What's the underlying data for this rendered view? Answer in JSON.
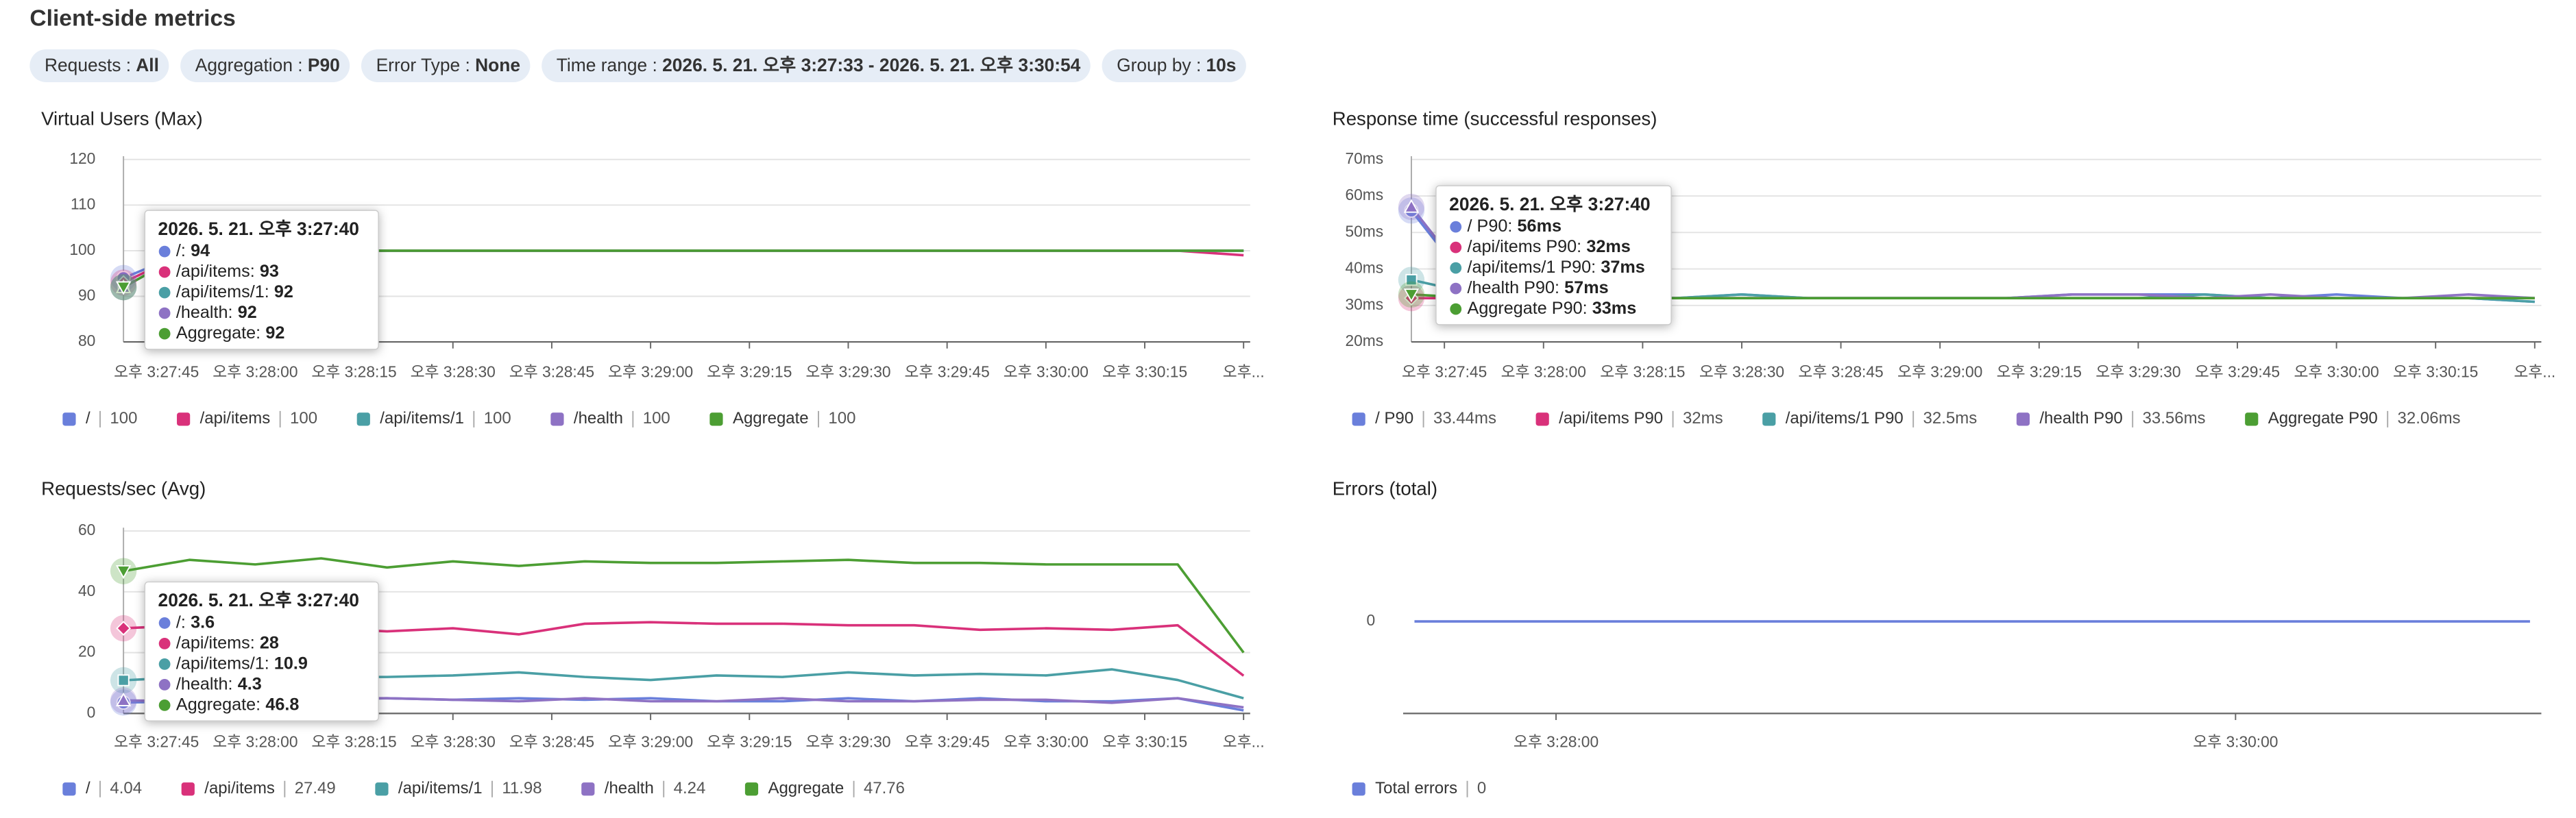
{
  "header": {
    "title": "Client-side metrics"
  },
  "filters": [
    {
      "label": "Requests :",
      "value": "All"
    },
    {
      "label": "Aggregation :",
      "value": "P90"
    },
    {
      "label": "Error Type :",
      "value": "None"
    },
    {
      "label": "Time range :",
      "value": "2026. 5. 21. 오후 3:27:33 - 2026. 5. 21. 오후 3:30:54"
    },
    {
      "label": "Group by :",
      "value": "10s"
    }
  ],
  "chart_data": [
    {
      "type": "line",
      "title": "Virtual Users (Max)",
      "grid": true,
      "hover_index": 0,
      "x": [
        "2026-05-21T15:27:40",
        "2026-05-21T15:27:50",
        "2026-05-21T15:28:00",
        "2026-05-21T15:28:10",
        "2026-05-21T15:28:20",
        "2026-05-21T15:28:30",
        "2026-05-21T15:28:40",
        "2026-05-21T15:28:50",
        "2026-05-21T15:29:00",
        "2026-05-21T15:29:10",
        "2026-05-21T15:29:20",
        "2026-05-21T15:29:30",
        "2026-05-21T15:29:40",
        "2026-05-21T15:29:50",
        "2026-05-21T15:30:00",
        "2026-05-21T15:30:10",
        "2026-05-21T15:30:20",
        "2026-05-21T15:30:30"
      ],
      "xlim": [
        "2026-05-21T15:27:40",
        "2026-05-21T15:30:31"
      ],
      "xticks": [
        {
          "value": "2026-05-21T15:27:45",
          "label": "오후 3:27:45"
        },
        {
          "value": "2026-05-21T15:28:00",
          "label": "오후 3:28:00"
        },
        {
          "value": "2026-05-21T15:28:15",
          "label": "오후 3:28:15"
        },
        {
          "value": "2026-05-21T15:28:30",
          "label": "오후 3:28:30"
        },
        {
          "value": "2026-05-21T15:28:45",
          "label": "오후 3:28:45"
        },
        {
          "value": "2026-05-21T15:29:00",
          "label": "오후 3:29:00"
        },
        {
          "value": "2026-05-21T15:29:15",
          "label": "오후 3:29:15"
        },
        {
          "value": "2026-05-21T15:29:30",
          "label": "오후 3:29:30"
        },
        {
          "value": "2026-05-21T15:29:45",
          "label": "오후 3:29:45"
        },
        {
          "value": "2026-05-21T15:30:00",
          "label": "오후 3:30:00"
        },
        {
          "value": "2026-05-21T15:30:15",
          "label": "오후 3:30:15"
        },
        {
          "value": "2026-05-21T15:30:30",
          "label": "오후..."
        }
      ],
      "ylim": [
        80,
        120
      ],
      "yticks": [
        80,
        90,
        100,
        110,
        120
      ],
      "series": [
        {
          "name": "/",
          "color": "#6a7fdb",
          "marker": "circle",
          "summary": "100",
          "values": [
            94,
            100,
            100,
            100,
            100,
            100,
            100,
            100,
            100,
            100,
            100,
            100,
            100,
            100,
            100,
            100,
            100,
            100
          ]
        },
        {
          "name": "/api/items",
          "color": "#d9317a",
          "marker": "diamond",
          "summary": "100",
          "values": [
            93,
            100,
            100,
            100,
            100,
            100,
            100,
            100,
            100,
            100,
            100,
            100,
            100,
            100,
            100,
            100,
            100,
            99
          ]
        },
        {
          "name": "/api/items/1",
          "color": "#4a9fa5",
          "marker": "square",
          "summary": "100",
          "values": [
            92,
            100,
            100,
            100,
            100,
            100,
            100,
            100,
            100,
            100,
            100,
            100,
            100,
            100,
            100,
            100,
            100,
            100
          ]
        },
        {
          "name": "/health",
          "color": "#8e72c4",
          "marker": "triangle-up",
          "summary": "100",
          "values": [
            92,
            100,
            100,
            100,
            100,
            100,
            100,
            100,
            100,
            100,
            100,
            100,
            100,
            100,
            100,
            100,
            100,
            100
          ]
        },
        {
          "name": "Aggregate",
          "color": "#4c9e33",
          "marker": "triangle-down",
          "summary": "100",
          "values": [
            92,
            100,
            100,
            100,
            100,
            100,
            100,
            100,
            100,
            100,
            100,
            100,
            100,
            100,
            100,
            100,
            100,
            100
          ]
        }
      ],
      "tooltip": {
        "title": "2026. 5. 21. 오후 3:27:40",
        "items": [
          {
            "label": "/:",
            "value": "94"
          },
          {
            "label": "/api/items:",
            "value": "93"
          },
          {
            "label": "/api/items/1:",
            "value": "92"
          },
          {
            "label": "/health:",
            "value": "92"
          },
          {
            "label": "Aggregate:",
            "value": "92"
          }
        ]
      }
    },
    {
      "type": "line",
      "title": "Response time (successful responses)",
      "grid": true,
      "hover_index": 0,
      "x": [
        "2026-05-21T15:27:40",
        "2026-05-21T15:27:50",
        "2026-05-21T15:28:00",
        "2026-05-21T15:28:10",
        "2026-05-21T15:28:20",
        "2026-05-21T15:28:30",
        "2026-05-21T15:28:40",
        "2026-05-21T15:28:50",
        "2026-05-21T15:29:00",
        "2026-05-21T15:29:10",
        "2026-05-21T15:29:20",
        "2026-05-21T15:29:30",
        "2026-05-21T15:29:40",
        "2026-05-21T15:29:50",
        "2026-05-21T15:30:00",
        "2026-05-21T15:30:10",
        "2026-05-21T15:30:20",
        "2026-05-21T15:30:30"
      ],
      "xlim": [
        "2026-05-21T15:27:40",
        "2026-05-21T15:30:31"
      ],
      "xticks": [
        {
          "value": "2026-05-21T15:27:45",
          "label": "오후 3:27:45"
        },
        {
          "value": "2026-05-21T15:28:00",
          "label": "오후 3:28:00"
        },
        {
          "value": "2026-05-21T15:28:15",
          "label": "오후 3:28:15"
        },
        {
          "value": "2026-05-21T15:28:30",
          "label": "오후 3:28:30"
        },
        {
          "value": "2026-05-21T15:28:45",
          "label": "오후 3:28:45"
        },
        {
          "value": "2026-05-21T15:29:00",
          "label": "오후 3:29:00"
        },
        {
          "value": "2026-05-21T15:29:15",
          "label": "오후 3:29:15"
        },
        {
          "value": "2026-05-21T15:29:30",
          "label": "오후 3:29:30"
        },
        {
          "value": "2026-05-21T15:29:45",
          "label": "오후 3:29:45"
        },
        {
          "value": "2026-05-21T15:30:00",
          "label": "오후 3:30:00"
        },
        {
          "value": "2026-05-21T15:30:15",
          "label": "오후 3:30:15"
        },
        {
          "value": "2026-05-21T15:30:30",
          "label": "오후..."
        }
      ],
      "ylim": [
        20,
        70
      ],
      "yticks": [
        {
          "value": 20,
          "label": "20ms"
        },
        {
          "value": 30,
          "label": "30ms"
        },
        {
          "value": 40,
          "label": "40ms"
        },
        {
          "value": 50,
          "label": "50ms"
        },
        {
          "value": 60,
          "label": "60ms"
        },
        {
          "value": 70,
          "label": "70ms"
        }
      ],
      "series": [
        {
          "name": "/ P90",
          "color": "#6a7fdb",
          "marker": "circle",
          "summary": "33.44ms",
          "values": [
            56,
            33,
            33,
            32,
            32,
            33,
            32,
            32,
            32,
            32,
            33,
            33,
            33,
            32,
            33,
            32,
            32,
            31
          ]
        },
        {
          "name": "/api/items P90",
          "color": "#d9317a",
          "marker": "diamond",
          "summary": "32ms",
          "values": [
            32,
            32,
            32,
            32,
            32,
            32,
            32,
            32,
            32,
            32,
            32,
            32,
            32,
            32,
            32,
            32,
            32,
            32
          ]
        },
        {
          "name": "/api/items/1 P90",
          "color": "#4a9fa5",
          "marker": "square",
          "summary": "32.5ms",
          "values": [
            37,
            33,
            33,
            33,
            32,
            33,
            32,
            32,
            32,
            32,
            32,
            32,
            33,
            32,
            32,
            32,
            32,
            31
          ]
        },
        {
          "name": "/health P90",
          "color": "#8e72c4",
          "marker": "triangle-up",
          "summary": "33.56ms",
          "values": [
            57,
            34,
            33,
            33,
            32,
            32,
            32,
            32,
            32,
            32,
            33,
            33,
            32,
            33,
            32,
            32,
            33,
            32
          ]
        },
        {
          "name": "Aggregate P90",
          "color": "#4c9e33",
          "marker": "triangle-down",
          "summary": "32.06ms",
          "values": [
            33,
            32,
            32,
            32,
            32,
            32,
            32,
            32,
            32,
            32,
            32,
            32,
            32,
            32,
            32,
            32,
            32,
            32
          ]
        }
      ],
      "tooltip": {
        "title": "2026. 5. 21. 오후 3:27:40",
        "items": [
          {
            "label": "/ P90:",
            "value": "56ms"
          },
          {
            "label": "/api/items P90:",
            "value": "32ms"
          },
          {
            "label": "/api/items/1 P90:",
            "value": "37ms"
          },
          {
            "label": "/health P90:",
            "value": "57ms"
          },
          {
            "label": "Aggregate P90:",
            "value": "33ms"
          }
        ]
      }
    },
    {
      "type": "line",
      "title": "Requests/sec (Avg)",
      "grid": true,
      "hover_index": 0,
      "x": [
        "2026-05-21T15:27:40",
        "2026-05-21T15:27:50",
        "2026-05-21T15:28:00",
        "2026-05-21T15:28:10",
        "2026-05-21T15:28:20",
        "2026-05-21T15:28:30",
        "2026-05-21T15:28:40",
        "2026-05-21T15:28:50",
        "2026-05-21T15:29:00",
        "2026-05-21T15:29:10",
        "2026-05-21T15:29:20",
        "2026-05-21T15:29:30",
        "2026-05-21T15:29:40",
        "2026-05-21T15:29:50",
        "2026-05-21T15:30:00",
        "2026-05-21T15:30:10",
        "2026-05-21T15:30:20",
        "2026-05-21T15:30:30"
      ],
      "xlim": [
        "2026-05-21T15:27:40",
        "2026-05-21T15:30:31"
      ],
      "xticks": [
        {
          "value": "2026-05-21T15:27:45",
          "label": "오후 3:27:45"
        },
        {
          "value": "2026-05-21T15:28:00",
          "label": "오후 3:28:00"
        },
        {
          "value": "2026-05-21T15:28:15",
          "label": "오후 3:28:15"
        },
        {
          "value": "2026-05-21T15:28:30",
          "label": "오후 3:28:30"
        },
        {
          "value": "2026-05-21T15:28:45",
          "label": "오후 3:28:45"
        },
        {
          "value": "2026-05-21T15:29:00",
          "label": "오후 3:29:00"
        },
        {
          "value": "2026-05-21T15:29:15",
          "label": "오후 3:29:15"
        },
        {
          "value": "2026-05-21T15:29:30",
          "label": "오후 3:29:30"
        },
        {
          "value": "2026-05-21T15:29:45",
          "label": "오후 3:29:45"
        },
        {
          "value": "2026-05-21T15:30:00",
          "label": "오후 3:30:00"
        },
        {
          "value": "2026-05-21T15:30:15",
          "label": "오후 3:30:15"
        },
        {
          "value": "2026-05-21T15:30:30",
          "label": "오후..."
        }
      ],
      "ylim": [
        0,
        60
      ],
      "yticks": [
        0,
        20,
        40,
        60
      ],
      "series": [
        {
          "name": "/",
          "color": "#6a7fdb",
          "marker": "circle",
          "summary": "4.04",
          "values": [
            3.6,
            4,
            4,
            4.5,
            5,
            4.5,
            5,
            4.5,
            5,
            4,
            4,
            5,
            4,
            5,
            4,
            4,
            5,
            1
          ]
        },
        {
          "name": "/api/items",
          "color": "#d9317a",
          "marker": "diamond",
          "summary": "27.49",
          "values": [
            28,
            29,
            27,
            28,
            27,
            28,
            26,
            29.5,
            30,
            29.5,
            29.5,
            29,
            29,
            27.5,
            28,
            27.5,
            29,
            12.4
          ]
        },
        {
          "name": "/api/items/1",
          "color": "#4a9fa5",
          "marker": "square",
          "summary": "11.98",
          "values": [
            10.9,
            12,
            12,
            12,
            12,
            12.5,
            13.5,
            12,
            11,
            12.5,
            12,
            13.5,
            12.5,
            13,
            12.5,
            14.5,
            11,
            5
          ]
        },
        {
          "name": "/health",
          "color": "#8e72c4",
          "marker": "triangle-up",
          "summary": "4.24",
          "values": [
            4.3,
            4,
            4,
            5,
            5,
            4.5,
            4,
            5,
            4,
            4,
            5,
            4,
            4,
            4.5,
            4.5,
            3.5,
            5,
            2
          ]
        },
        {
          "name": "Aggregate",
          "color": "#4c9e33",
          "marker": "triangle-down",
          "summary": "47.76",
          "values": [
            46.8,
            50.5,
            49,
            51,
            48,
            50,
            48.5,
            50,
            49.5,
            49.5,
            50,
            50.5,
            49.5,
            49.5,
            49,
            49,
            49,
            20
          ]
        }
      ],
      "tooltip": {
        "title": "2026. 5. 21. 오후 3:27:40",
        "items": [
          {
            "label": "/:",
            "value": "3.6"
          },
          {
            "label": "/api/items:",
            "value": "28"
          },
          {
            "label": "/api/items/1:",
            "value": "10.9"
          },
          {
            "label": "/health:",
            "value": "4.3"
          },
          {
            "label": "Aggregate:",
            "value": "46.8"
          }
        ]
      }
    },
    {
      "type": "line",
      "title": "Errors (total)",
      "grid": false,
      "x": [
        "2026-05-21T15:27:35",
        "2026-05-21T15:30:52"
      ],
      "xlim": [
        "2026-05-21T15:27:33",
        "2026-05-21T15:30:54"
      ],
      "xticks": [
        {
          "value": "2026-05-21T15:28:00",
          "label": "오후 3:28:00"
        },
        {
          "value": "2026-05-21T15:30:00",
          "label": "오후 3:30:00"
        }
      ],
      "ylim": [
        -1,
        1
      ],
      "yticks": [
        0
      ],
      "series": [
        {
          "name": "Total errors",
          "color": "#6a7fdb",
          "summary": "0",
          "values": [
            0,
            0
          ]
        }
      ]
    }
  ]
}
